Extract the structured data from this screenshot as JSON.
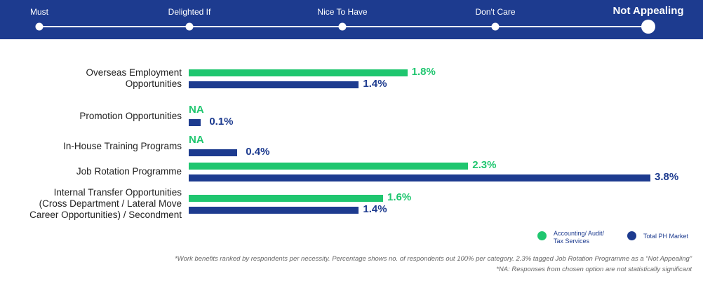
{
  "header": {
    "stages": [
      {
        "label": "Must",
        "active": false
      },
      {
        "label": "Delighted If",
        "active": false
      },
      {
        "label": "Nice To Have",
        "active": false
      },
      {
        "label": "Don't Care",
        "active": false
      },
      {
        "label": "Not Appealing",
        "active": true
      }
    ]
  },
  "chart_data": {
    "type": "bar",
    "orientation": "horizontal",
    "title": "Not Appealing",
    "categories": [
      "Overseas Employment Opportunities",
      "Promotion Opportunities",
      "In-House Training Programs",
      "Job Rotation Programme",
      "Internal Transfer Opportunities (Cross Department / Lateral Move Career Opportunities) / Secondment"
    ],
    "category_lines": [
      [
        "Overseas Employment",
        "Opportunities"
      ],
      [
        "Promotion Opportunities"
      ],
      [
        "In-House Training Programs"
      ],
      [
        "Job Rotation Programme"
      ],
      [
        "Internal Transfer Opportunities",
        "(Cross Department / Lateral Move",
        "Career Opportunities) / Secondment"
      ]
    ],
    "series": [
      {
        "name": "Accounting/ Audit/ Tax Services",
        "color": "#1fc66f",
        "values": [
          1.8,
          null,
          null,
          2.3,
          1.6
        ],
        "labels": [
          "1.8%",
          "NA",
          "NA",
          "2.3%",
          "1.6%"
        ]
      },
      {
        "name": "Total PH Market",
        "color": "#1d3b8f",
        "values": [
          1.4,
          0.1,
          0.4,
          3.8,
          1.4
        ],
        "labels": [
          "1.4%",
          "0.1%",
          "0.4%",
          "3.8%",
          "1.4%"
        ]
      }
    ],
    "unit": "%",
    "xlim": [
      0,
      3.85
    ],
    "legend": {
      "placement": "bottom-right",
      "entries": [
        "Accounting/ Audit/ Tax Services",
        "Total PH Market"
      ]
    }
  },
  "legend": {
    "green_label_1": "Accounting/ Audit/",
    "green_label_2": "Tax Services",
    "blue_label": "Total PH Market"
  },
  "notes": [
    "*Work benefits ranked by respondents per necessity. Percentage shows no. of respondents out 100% per category. 2.3% tagged Job Rotation Programme as a “Not Appealing”",
    "*NA: Responses from chosen option are not statistically significant"
  ]
}
